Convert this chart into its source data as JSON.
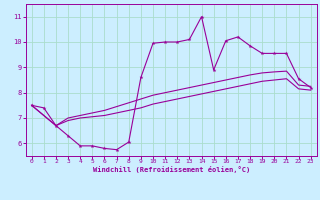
{
  "background_color": "#cceeff",
  "line_color": "#990099",
  "grid_color": "#aaddcc",
  "xlabel": "Windchill (Refroidissement éolien,°C)",
  "xlabel_color": "#990099",
  "tick_color": "#990099",
  "xlim": [
    -0.5,
    23.5
  ],
  "ylim": [
    5.5,
    11.5
  ],
  "yticks": [
    6,
    7,
    8,
    9,
    10,
    11
  ],
  "xticks": [
    0,
    1,
    2,
    3,
    4,
    5,
    6,
    7,
    8,
    9,
    10,
    11,
    12,
    13,
    14,
    15,
    16,
    17,
    18,
    19,
    20,
    21,
    22,
    23
  ],
  "series1_x": [
    0,
    1,
    2,
    3,
    4,
    5,
    6,
    7,
    8,
    9,
    10,
    11,
    12,
    13,
    14,
    15,
    16,
    17,
    18,
    19,
    20,
    21,
    22,
    23
  ],
  "series1_y": [
    7.5,
    7.4,
    6.7,
    6.3,
    5.9,
    5.9,
    5.8,
    5.75,
    6.05,
    8.6,
    9.95,
    10.0,
    10.0,
    10.1,
    11.0,
    8.9,
    10.05,
    10.2,
    9.85,
    9.55,
    9.55,
    9.55,
    8.55,
    8.2
  ],
  "series2_x": [
    0,
    2,
    3,
    4,
    5,
    6,
    7,
    8,
    9,
    10,
    11,
    12,
    13,
    14,
    15,
    16,
    17,
    18,
    19,
    20,
    21,
    22,
    23
  ],
  "series2_y": [
    7.5,
    6.7,
    6.9,
    7.0,
    7.05,
    7.1,
    7.2,
    7.3,
    7.4,
    7.55,
    7.65,
    7.75,
    7.85,
    7.95,
    8.05,
    8.15,
    8.25,
    8.35,
    8.45,
    8.5,
    8.55,
    8.15,
    8.1
  ],
  "series3_x": [
    0,
    2,
    3,
    4,
    5,
    6,
    7,
    8,
    9,
    10,
    11,
    12,
    13,
    14,
    15,
    16,
    17,
    18,
    19,
    20,
    21,
    22,
    23
  ],
  "series3_y": [
    7.5,
    6.7,
    7.0,
    7.1,
    7.2,
    7.3,
    7.45,
    7.6,
    7.75,
    7.9,
    8.0,
    8.1,
    8.2,
    8.3,
    8.4,
    8.5,
    8.6,
    8.7,
    8.78,
    8.82,
    8.85,
    8.3,
    8.25
  ]
}
